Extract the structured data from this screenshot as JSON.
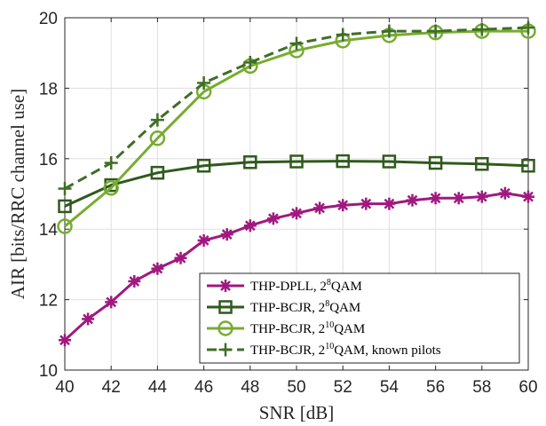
{
  "chart_data": {
    "type": "line",
    "title": "",
    "xlabel": "SNR [dB]",
    "ylabel": "AIR [bits/RRC channel use]",
    "xlim": [
      40,
      60
    ],
    "ylim": [
      10,
      20
    ],
    "xticks": [
      40,
      42,
      44,
      46,
      48,
      50,
      52,
      54,
      56,
      58,
      60
    ],
    "yticks": [
      10,
      12,
      14,
      16,
      18,
      20
    ],
    "grid": true,
    "legend_position": "bottom-right",
    "series": [
      {
        "name": "THP-DPLL, 2^8QAM",
        "legend": {
          "pre": "THP-DPLL, 2",
          "sup": "8",
          "post": "QAM"
        },
        "color": "#a0197f",
        "line": "solid",
        "marker": "asterisk",
        "x": [
          40,
          41,
          42,
          43,
          44,
          45,
          46,
          47,
          48,
          49,
          50,
          51,
          52,
          53,
          54,
          55,
          56,
          57,
          58,
          59,
          60
        ],
        "y": [
          10.85,
          11.45,
          11.93,
          12.52,
          12.88,
          13.18,
          13.68,
          13.85,
          14.1,
          14.3,
          14.45,
          14.6,
          14.68,
          14.72,
          14.72,
          14.82,
          14.88,
          14.88,
          14.92,
          15.02,
          14.92
        ]
      },
      {
        "name": "THP-BCJR, 2^8QAM",
        "legend": {
          "pre": "THP-BCJR, 2",
          "sup": "8",
          "post": "QAM"
        },
        "color": "#2f5a1d",
        "line": "solid",
        "marker": "square",
        "x": [
          40,
          42,
          44,
          46,
          48,
          50,
          52,
          54,
          56,
          58,
          60
        ],
        "y": [
          14.65,
          15.25,
          15.6,
          15.8,
          15.9,
          15.92,
          15.93,
          15.92,
          15.88,
          15.85,
          15.8
        ]
      },
      {
        "name": "THP-BCJR, 2^10QAM",
        "legend": {
          "pre": "THP-BCJR, 2",
          "sup": "10",
          "post": "QAM"
        },
        "color": "#77ac30",
        "line": "solid",
        "marker": "circle",
        "x": [
          40,
          42,
          44,
          46,
          48,
          50,
          52,
          54,
          56,
          58,
          60
        ],
        "y": [
          14.08,
          15.17,
          16.58,
          17.9,
          18.63,
          19.07,
          19.35,
          19.5,
          19.58,
          19.62,
          19.62
        ]
      },
      {
        "name": "THP-BCJR, 2^10QAM, known pilots",
        "legend": {
          "pre": "THP-BCJR, 2",
          "sup": "10",
          "post": "QAM, known pilots"
        },
        "color": "#3f6e26",
        "line": "dashed",
        "marker": "plus",
        "x": [
          40,
          42,
          44,
          46,
          48,
          50,
          52,
          54,
          56,
          58,
          60
        ],
        "y": [
          15.15,
          15.88,
          17.1,
          18.15,
          18.73,
          19.27,
          19.52,
          19.62,
          19.62,
          19.67,
          19.72
        ]
      }
    ]
  }
}
